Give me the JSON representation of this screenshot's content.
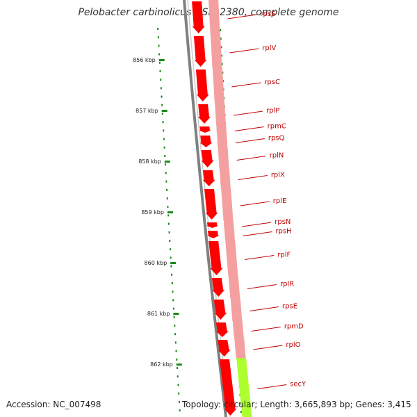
{
  "title": "Pelobacter carbinolicus DSM 2380, complete genome",
  "footer": {
    "accession": "Accession: NC_007498",
    "topology": "Topology: circular; Length: 3,665,893 bp; Genes: 3,415"
  },
  "colors": {
    "gene_fill": "#ff0000",
    "cds_track": "#f4a0a0",
    "other_feature": "#adff2f",
    "backbone": "#808080",
    "tick": "#1a8a1a",
    "label": "#c00000"
  },
  "ticks": [
    "856 kbp",
    "857 kbp",
    "858 kbp",
    "859 kbp",
    "860 kbp",
    "861 kbp",
    "862 kbp"
  ],
  "genes": [
    {
      "label": "rpsS"
    },
    {
      "label": "rplV"
    },
    {
      "label": "rpsC"
    },
    {
      "label": "rplP"
    },
    {
      "label": "rpmC"
    },
    {
      "label": "rpsQ"
    },
    {
      "label": "rplN"
    },
    {
      "label": "rplX"
    },
    {
      "label": "rplE"
    },
    {
      "label": "rpsN"
    },
    {
      "label": "rpsH"
    },
    {
      "label": "rplF"
    },
    {
      "label": "rplR"
    },
    {
      "label": "rpsE"
    },
    {
      "label": "rpmD"
    },
    {
      "label": "rplO"
    },
    {
      "label": "secY"
    }
  ]
}
